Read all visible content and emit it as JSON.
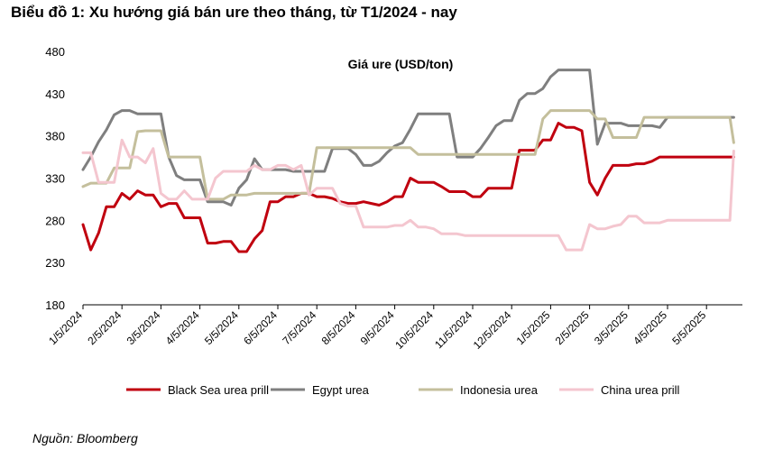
{
  "page": {
    "title": "Biểu đồ 1: Xu hướng giá bán ure theo tháng, từ T1/2024 - nay",
    "source": "Nguồn: Bloomberg"
  },
  "chart_data": {
    "type": "line",
    "subtitle": "Giá ure (USD/ton)",
    "ylim": [
      180,
      480
    ],
    "yticks": [
      180,
      230,
      280,
      330,
      380,
      430,
      480
    ],
    "x_tick_labels": [
      "1/5/2024",
      "2/5/2024",
      "3/5/2024",
      "4/5/2024",
      "5/5/2024",
      "6/5/2024",
      "7/5/2024",
      "8/5/2024",
      "9/5/2024",
      "10/5/2024",
      "11/5/2024",
      "12/5/2024",
      "1/5/2025",
      "2/5/2025",
      "3/5/2025",
      "4/5/2025",
      "5/5/2025"
    ],
    "x_range_months": [
      0,
      16.7
    ],
    "grid": false,
    "legend_position": "bottom",
    "series": [
      {
        "name": "Black Sea urea prill",
        "color": "#c0000f",
        "x": [
          0,
          0.2,
          0.4,
          0.6,
          0.8,
          1.0,
          1.2,
          1.4,
          1.6,
          1.8,
          2.0,
          2.2,
          2.4,
          2.6,
          2.8,
          3.0,
          3.2,
          3.4,
          3.6,
          3.8,
          4.0,
          4.2,
          4.4,
          4.6,
          4.8,
          5.0,
          5.2,
          5.4,
          5.6,
          5.8,
          6.0,
          6.2,
          6.4,
          6.6,
          6.8,
          7.0,
          7.2,
          7.4,
          7.6,
          7.8,
          8.0,
          8.2,
          8.4,
          8.6,
          8.8,
          9.0,
          9.2,
          9.4,
          9.6,
          9.8,
          10.0,
          10.2,
          10.4,
          10.6,
          10.8,
          11.0,
          11.2,
          11.4,
          11.6,
          11.8,
          12.0,
          12.2,
          12.4,
          12.6,
          12.8,
          13.0,
          13.2,
          13.4,
          13.6,
          13.8,
          14.0,
          14.2,
          14.4,
          14.6,
          14.8,
          15.0,
          15.2,
          15.4,
          15.6,
          15.8,
          16.0,
          16.2,
          16.4,
          16.6,
          16.7
        ],
        "values": [
          275,
          245,
          265,
          296,
          296,
          312,
          305,
          315,
          310,
          310,
          296,
          300,
          300,
          283,
          283,
          283,
          253,
          253,
          255,
          255,
          243,
          243,
          258,
          268,
          302,
          302,
          308,
          308,
          312,
          312,
          308,
          308,
          306,
          302,
          300,
          300,
          302,
          300,
          298,
          302,
          308,
          308,
          330,
          325,
          325,
          325,
          320,
          314,
          314,
          314,
          308,
          308,
          318,
          318,
          318,
          318,
          363,
          363,
          363,
          375,
          375,
          395,
          390,
          390,
          386,
          325,
          310,
          330,
          345,
          345,
          345,
          347,
          347,
          350,
          355,
          355,
          355,
          355,
          355,
          355,
          355,
          355,
          355,
          355,
          355
        ]
      },
      {
        "name": "Egypt urea",
        "color": "#7f7f7f",
        "x": [
          0,
          0.2,
          0.4,
          0.6,
          0.8,
          1.0,
          1.2,
          1.4,
          1.6,
          1.8,
          2.0,
          2.2,
          2.4,
          2.6,
          2.8,
          3.0,
          3.2,
          3.4,
          3.6,
          3.8,
          4.0,
          4.2,
          4.4,
          4.6,
          4.8,
          5.0,
          5.2,
          5.4,
          5.6,
          5.8,
          6.0,
          6.2,
          6.4,
          6.6,
          6.8,
          7.0,
          7.2,
          7.4,
          7.6,
          7.8,
          8.0,
          8.2,
          8.4,
          8.6,
          8.8,
          9.0,
          9.2,
          9.4,
          9.6,
          9.8,
          10.0,
          10.2,
          10.4,
          10.6,
          10.8,
          11.0,
          11.2,
          11.4,
          11.6,
          11.8,
          12.0,
          12.2,
          12.4,
          12.6,
          12.8,
          13.0,
          13.2,
          13.4,
          13.6,
          13.8,
          14.0,
          14.2,
          14.4,
          14.6,
          14.8,
          15.0,
          15.2,
          15.4,
          15.6,
          15.8,
          16.0,
          16.2,
          16.4,
          16.6,
          16.7
        ],
        "values": [
          340,
          355,
          373,
          387,
          405,
          410,
          410,
          406,
          406,
          406,
          406,
          355,
          333,
          328,
          328,
          328,
          302,
          302,
          302,
          298,
          318,
          328,
          353,
          340,
          340,
          340,
          340,
          338,
          338,
          338,
          338,
          338,
          365,
          365,
          365,
          358,
          345,
          345,
          350,
          360,
          368,
          372,
          388,
          406,
          406,
          406,
          406,
          406,
          355,
          355,
          355,
          365,
          378,
          392,
          398,
          398,
          422,
          430,
          430,
          436,
          450,
          458,
          458,
          458,
          458,
          458,
          370,
          395,
          395,
          395,
          392,
          392,
          392,
          392,
          390,
          402,
          402,
          402,
          402,
          402,
          402,
          402,
          402,
          402,
          402
        ]
      },
      {
        "name": "Indonesia urea",
        "color": "#c4bf9c",
        "x": [
          0,
          0.2,
          0.4,
          0.6,
          0.8,
          1.0,
          1.2,
          1.4,
          1.6,
          1.8,
          2.0,
          2.2,
          2.4,
          2.6,
          2.8,
          3.0,
          3.2,
          3.4,
          3.6,
          3.8,
          4.0,
          4.2,
          4.4,
          4.6,
          4.8,
          5.0,
          5.2,
          5.4,
          5.6,
          5.8,
          6.0,
          6.2,
          6.4,
          6.6,
          6.8,
          7.0,
          7.2,
          7.4,
          7.6,
          7.8,
          8.0,
          8.2,
          8.4,
          8.6,
          8.8,
          9.0,
          9.2,
          9.4,
          9.6,
          9.8,
          10.0,
          10.2,
          10.4,
          10.6,
          10.8,
          11.0,
          11.2,
          11.4,
          11.6,
          11.8,
          12.0,
          12.2,
          12.4,
          12.6,
          12.8,
          13.0,
          13.2,
          13.4,
          13.6,
          13.8,
          14.0,
          14.2,
          14.4,
          14.6,
          14.8,
          15.0,
          15.2,
          15.4,
          15.6,
          15.8,
          16.0,
          16.2,
          16.4,
          16.6,
          16.7
        ],
        "values": [
          320,
          324,
          324,
          324,
          342,
          342,
          342,
          385,
          386,
          386,
          386,
          355,
          355,
          355,
          355,
          355,
          305,
          305,
          305,
          310,
          310,
          310,
          312,
          312,
          312,
          312,
          312,
          312,
          312,
          312,
          366,
          366,
          366,
          366,
          366,
          366,
          366,
          366,
          366,
          366,
          366,
          366,
          366,
          358,
          358,
          358,
          358,
          358,
          358,
          358,
          358,
          358,
          358,
          358,
          358,
          358,
          358,
          358,
          358,
          400,
          410,
          410,
          410,
          410,
          410,
          410,
          400,
          400,
          378,
          378,
          378,
          378,
          402,
          402,
          402,
          402,
          402,
          402,
          402,
          402,
          402,
          402,
          402,
          402,
          372
        ]
      },
      {
        "name": "China urea prill",
        "color": "#f4c6cf",
        "x": [
          0,
          0.2,
          0.4,
          0.6,
          0.8,
          1.0,
          1.2,
          1.4,
          1.6,
          1.8,
          2.0,
          2.2,
          2.4,
          2.6,
          2.8,
          3.0,
          3.2,
          3.4,
          3.6,
          3.8,
          4.0,
          4.2,
          4.4,
          4.6,
          4.8,
          5.0,
          5.2,
          5.4,
          5.6,
          5.8,
          6.0,
          6.2,
          6.4,
          6.6,
          6.8,
          7.0,
          7.2,
          7.4,
          7.6,
          7.8,
          8.0,
          8.2,
          8.4,
          8.6,
          8.8,
          9.0,
          9.2,
          9.4,
          9.6,
          9.8,
          10.0,
          10.2,
          10.4,
          10.6,
          10.8,
          11.0,
          11.2,
          11.4,
          11.6,
          11.8,
          12.0,
          12.2,
          12.4,
          12.6,
          12.8,
          13.0,
          13.2,
          13.4,
          13.6,
          13.8,
          14.0,
          14.2,
          14.4,
          14.6,
          14.8,
          15.0,
          15.2,
          15.4,
          15.6,
          15.8,
          16.0,
          16.2,
          16.4,
          16.6,
          16.7
        ],
        "values": [
          360,
          360,
          325,
          325,
          325,
          375,
          355,
          355,
          348,
          365,
          312,
          305,
          305,
          315,
          305,
          305,
          305,
          330,
          338,
          338,
          338,
          338,
          345,
          340,
          340,
          345,
          345,
          340,
          345,
          310,
          318,
          318,
          318,
          300,
          297,
          297,
          272,
          272,
          272,
          272,
          274,
          274,
          280,
          272,
          272,
          270,
          264,
          264,
          264,
          262,
          262,
          262,
          262,
          262,
          262,
          262,
          262,
          262,
          262,
          262,
          262,
          262,
          245,
          245,
          245,
          275,
          270,
          270,
          273,
          275,
          285,
          285,
          277,
          277,
          277,
          280,
          280,
          280,
          280,
          280,
          280,
          280,
          280,
          280,
          362
        ]
      }
    ]
  }
}
